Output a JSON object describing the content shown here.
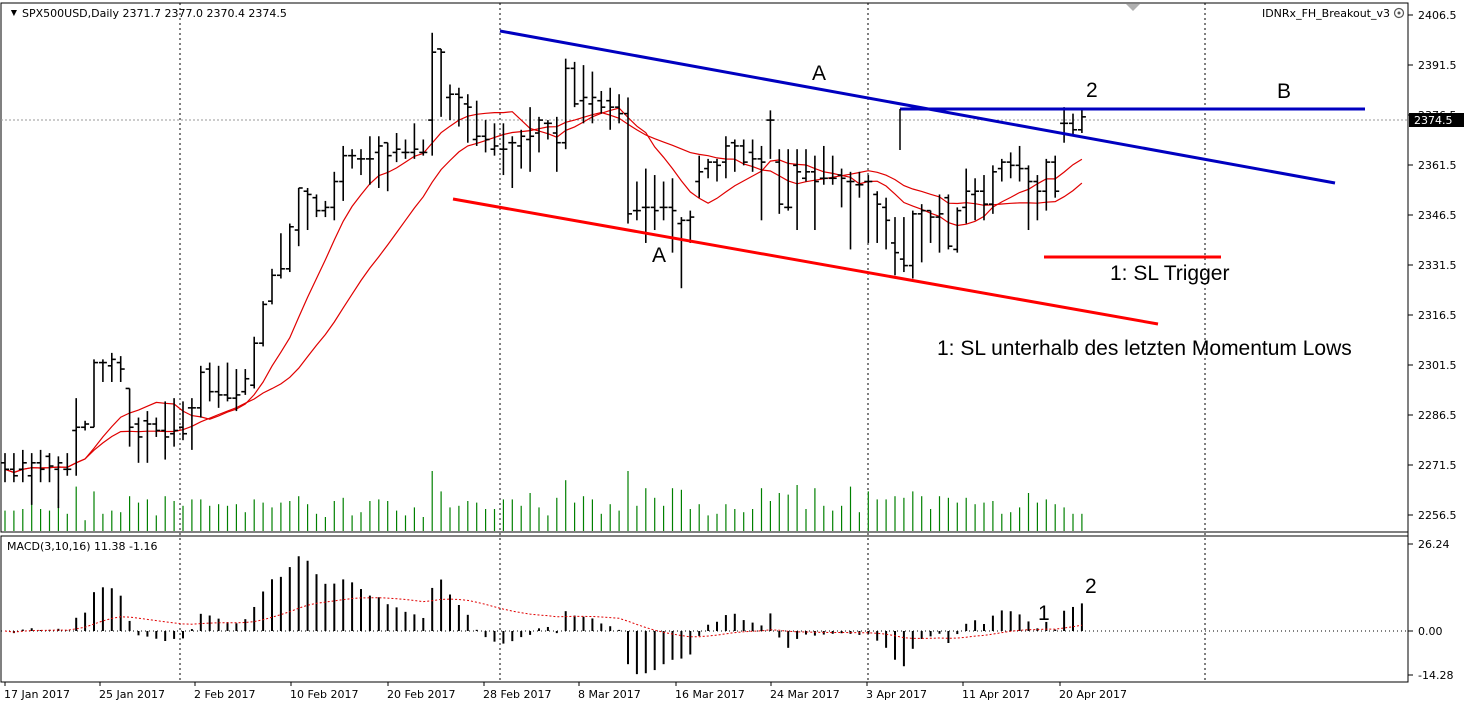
{
  "chart_header": {
    "symbol_line": "SPX500USD,Daily  2371.7 2377.0 2370.4 2374.5",
    "indicator_name": "IDNRx_FH_Breakout_v3",
    "macd_label": "MACD(3,10,16) 11.38 -1.16"
  },
  "colors": {
    "background": "#ffffff",
    "bars": "#000000",
    "volume": "#008000",
    "moving_average": "#e00000",
    "resistance_line": "#0000c0",
    "support_line": "#ff0000",
    "frame": "#000000",
    "grid": "#000000"
  },
  "price_axis": {
    "ticks": [
      "2406.5",
      "2391.5",
      "2376.5",
      "2361.5",
      "2346.5",
      "2331.5",
      "2316.5",
      "2301.5",
      "2286.5",
      "2271.5",
      "2256.5"
    ],
    "current_price": "2374.5"
  },
  "macd_axis": {
    "ticks": [
      "26.24",
      "0.00",
      "-14.28"
    ]
  },
  "date_axis": {
    "ticks": [
      "17 Jan 2017",
      "25 Jan 2017",
      "2 Feb 2017",
      "10 Feb 2017",
      "20 Feb 2017",
      "28 Feb 2017",
      "8 Mar 2017",
      "16 Mar 2017",
      "24 Mar 2017",
      "3 Apr 2017",
      "11 Apr 2017",
      "20 Apr 2017"
    ]
  },
  "annotations": {
    "upper_trendline_label": "A",
    "lower_trendline_label": "A",
    "horizontal_line_label": "B",
    "breakout_label": "2",
    "sl_trigger_label": "1: SL Trigger",
    "sl_note": "1: SL unterhalb des letzten Momentum Lows",
    "macd_label_1": "1",
    "macd_label_2": "2"
  },
  "window_controls": {
    "scroll_up": "▲"
  },
  "chart_data": {
    "type": "ohlc",
    "symbol": "SPX500USD",
    "timeframe": "Daily",
    "y_range": [
      2252,
      2410
    ],
    "bars": [
      {
        "o": 2268,
        "h": 2271,
        "l": 2262,
        "c": 2266
      },
      {
        "o": 2266,
        "h": 2271,
        "l": 2262,
        "c": 2264
      },
      {
        "o": 2266,
        "h": 2272,
        "l": 2262,
        "c": 2268
      },
      {
        "o": 2264,
        "h": 2271,
        "l": 2255,
        "c": 2268
      },
      {
        "o": 2268,
        "h": 2272,
        "l": 2262,
        "c": 2266
      },
      {
        "o": 2270,
        "h": 2271,
        "l": 2262,
        "c": 2267
      },
      {
        "o": 2266,
        "h": 2270,
        "l": 2254,
        "c": 2268
      },
      {
        "o": 2266,
        "h": 2271,
        "l": 2264,
        "c": 2266
      },
      {
        "o": 2278,
        "h": 2288,
        "l": 2264,
        "c": 2279
      },
      {
        "o": 2279,
        "h": 2281,
        "l": 2278,
        "c": 2280
      },
      {
        "o": 2279,
        "h": 2300,
        "l": 2279,
        "c": 2299
      },
      {
        "o": 2299,
        "h": 2300,
        "l": 2293,
        "c": 2299
      },
      {
        "o": 2298,
        "h": 2302,
        "l": 2293,
        "c": 2300
      },
      {
        "o": 2299,
        "h": 2301,
        "l": 2293,
        "c": 2297
      },
      {
        "o": 2291,
        "h": 2291,
        "l": 2273,
        "c": 2279
      },
      {
        "o": 2280,
        "h": 2282,
        "l": 2268,
        "c": 2276
      },
      {
        "o": 2281,
        "h": 2284,
        "l": 2268,
        "c": 2280
      },
      {
        "o": 2280,
        "h": 2282,
        "l": 2276,
        "c": 2278
      },
      {
        "o": 2278,
        "h": 2287,
        "l": 2269,
        "c": 2276
      },
      {
        "o": 2277,
        "h": 2288,
        "l": 2273,
        "c": 2278
      },
      {
        "o": 2279,
        "h": 2287,
        "l": 2275,
        "c": 2277
      },
      {
        "o": 2285,
        "h": 2288,
        "l": 2272,
        "c": 2285
      },
      {
        "o": 2285,
        "h": 2298,
        "l": 2282,
        "c": 2296
      },
      {
        "o": 2297,
        "h": 2299,
        "l": 2287,
        "c": 2290
      },
      {
        "o": 2290,
        "h": 2298,
        "l": 2285,
        "c": 2289
      },
      {
        "o": 2289,
        "h": 2299,
        "l": 2287,
        "c": 2288
      },
      {
        "o": 2288,
        "h": 2297,
        "l": 2284,
        "c": 2289
      },
      {
        "o": 2290,
        "h": 2297,
        "l": 2289,
        "c": 2294
      },
      {
        "o": 2292,
        "h": 2307,
        "l": 2291,
        "c": 2305
      },
      {
        "o": 2305,
        "h": 2318,
        "l": 2304,
        "c": 2317
      },
      {
        "o": 2318,
        "h": 2328,
        "l": 2317,
        "c": 2326
      },
      {
        "o": 2326,
        "h": 2339,
        "l": 2325,
        "c": 2328
      },
      {
        "o": 2328,
        "h": 2342,
        "l": 2327,
        "c": 2341
      },
      {
        "o": 2340,
        "h": 2353,
        "l": 2335,
        "c": 2353
      },
      {
        "o": 2352,
        "h": 2353,
        "l": 2340,
        "c": 2351
      },
      {
        "o": 2350,
        "h": 2351,
        "l": 2344,
        "c": 2346
      },
      {
        "o": 2346,
        "h": 2349,
        "l": 2344,
        "c": 2347
      },
      {
        "o": 2347,
        "h": 2358,
        "l": 2343,
        "c": 2355
      },
      {
        "o": 2355,
        "h": 2366,
        "l": 2349,
        "c": 2363
      },
      {
        "o": 2363,
        "h": 2365,
        "l": 2359,
        "c": 2363
      },
      {
        "o": 2362,
        "h": 2365,
        "l": 2357,
        "c": 2362
      },
      {
        "o": 2362,
        "h": 2369,
        "l": 2354,
        "c": 2362
      },
      {
        "o": 2364,
        "h": 2369,
        "l": 2353,
        "c": 2366
      },
      {
        "o": 2367,
        "h": 2367,
        "l": 2352,
        "c": 2363
      },
      {
        "o": 2364,
        "h": 2370,
        "l": 2361,
        "c": 2365
      },
      {
        "o": 2364,
        "h": 2368,
        "l": 2362,
        "c": 2364
      },
      {
        "o": 2364,
        "h": 2373,
        "l": 2362,
        "c": 2365
      },
      {
        "o": 2364,
        "h": 2368,
        "l": 2363,
        "c": 2364
      },
      {
        "o": 2374,
        "h": 2401,
        "l": 2363,
        "c": 2395
      },
      {
        "o": 2396,
        "h": 2396,
        "l": 2375,
        "c": 2395
      },
      {
        "o": 2381,
        "h": 2385,
        "l": 2374,
        "c": 2382
      },
      {
        "o": 2382,
        "h": 2384,
        "l": 2372,
        "c": 2381
      },
      {
        "o": 2379,
        "h": 2382,
        "l": 2367,
        "c": 2378
      },
      {
        "o": 2368,
        "h": 2380,
        "l": 2366,
        "c": 2369
      },
      {
        "o": 2369,
        "h": 2374,
        "l": 2364,
        "c": 2368
      },
      {
        "o": 2365,
        "h": 2373,
        "l": 2363,
        "c": 2366
      },
      {
        "o": 2365,
        "h": 2373,
        "l": 2357,
        "c": 2365
      },
      {
        "o": 2367,
        "h": 2369,
        "l": 2353,
        "c": 2367
      },
      {
        "o": 2366,
        "h": 2371,
        "l": 2359,
        "c": 2369
      },
      {
        "o": 2368,
        "h": 2378,
        "l": 2358,
        "c": 2369
      },
      {
        "o": 2370,
        "h": 2375,
        "l": 2364,
        "c": 2374
      },
      {
        "o": 2373,
        "h": 2374,
        "l": 2368,
        "c": 2373
      },
      {
        "o": 2370,
        "h": 2375,
        "l": 2358,
        "c": 2367
      },
      {
        "o": 2367,
        "h": 2393,
        "l": 2365,
        "c": 2390
      },
      {
        "o": 2390,
        "h": 2392,
        "l": 2378,
        "c": 2379
      },
      {
        "o": 2380,
        "h": 2391,
        "l": 2373,
        "c": 2381
      },
      {
        "o": 2379,
        "h": 2389,
        "l": 2373,
        "c": 2381
      },
      {
        "o": 2380,
        "h": 2383,
        "l": 2376,
        "c": 2378
      },
      {
        "o": 2380,
        "h": 2384,
        "l": 2371,
        "c": 2378
      },
      {
        "o": 2378,
        "h": 2382,
        "l": 2373,
        "c": 2376
      },
      {
        "o": 2376,
        "h": 2381,
        "l": 2342,
        "c": 2345
      },
      {
        "o": 2346,
        "h": 2355,
        "l": 2343,
        "c": 2346
      },
      {
        "o": 2347,
        "h": 2359,
        "l": 2336,
        "c": 2347
      },
      {
        "o": 2347,
        "h": 2357,
        "l": 2340,
        "c": 2346
      },
      {
        "o": 2347,
        "h": 2355,
        "l": 2343,
        "c": 2347
      },
      {
        "o": 2347,
        "h": 2356,
        "l": 2333,
        "c": 2346
      },
      {
        "o": 2342,
        "h": 2344,
        "l": 2322,
        "c": 2343
      },
      {
        "o": 2343,
        "h": 2346,
        "l": 2336,
        "c": 2344
      },
      {
        "o": 2355,
        "h": 2363,
        "l": 2350,
        "c": 2358
      },
      {
        "o": 2359,
        "h": 2362,
        "l": 2356,
        "c": 2361
      },
      {
        "o": 2361,
        "h": 2362,
        "l": 2355,
        "c": 2360
      },
      {
        "o": 2361,
        "h": 2369,
        "l": 2356,
        "c": 2366
      },
      {
        "o": 2367,
        "h": 2368,
        "l": 2358,
        "c": 2366
      },
      {
        "o": 2366,
        "h": 2368,
        "l": 2360,
        "c": 2361
      },
      {
        "o": 2364,
        "h": 2368,
        "l": 2358,
        "c": 2362
      },
      {
        "o": 2362,
        "h": 2366,
        "l": 2343,
        "c": 2361
      },
      {
        "o": 2374,
        "h": 2377,
        "l": 2362,
        "c": 2374
      },
      {
        "o": 2361,
        "h": 2365,
        "l": 2345,
        "c": 2348
      },
      {
        "o": 2347,
        "h": 2365,
        "l": 2346,
        "c": 2347
      },
      {
        "o": 2360,
        "h": 2365,
        "l": 2340,
        "c": 2358
      },
      {
        "o": 2356,
        "h": 2365,
        "l": 2355,
        "c": 2358
      },
      {
        "o": 2358,
        "h": 2363,
        "l": 2340,
        "c": 2355
      },
      {
        "o": 2356,
        "h": 2366,
        "l": 2354,
        "c": 2356
      },
      {
        "o": 2356,
        "h": 2363,
        "l": 2354,
        "c": 2356
      },
      {
        "o": 2357,
        "h": 2359,
        "l": 2347,
        "c": 2356
      },
      {
        "o": 2355,
        "h": 2358,
        "l": 2334,
        "c": 2355
      },
      {
        "o": 2354,
        "h": 2358,
        "l": 2350,
        "c": 2354
      },
      {
        "o": 2355,
        "h": 2357,
        "l": 2336,
        "c": 2355
      },
      {
        "o": 2351,
        "h": 2352,
        "l": 2336,
        "c": 2348
      },
      {
        "o": 2347,
        "h": 2350,
        "l": 2334,
        "c": 2343
      },
      {
        "o": 2336,
        "h": 2344,
        "l": 2326,
        "c": 2333
      },
      {
        "o": 2331,
        "h": 2344,
        "l": 2327,
        "c": 2329
      },
      {
        "o": 2329,
        "h": 2346,
        "l": 2325,
        "c": 2345
      },
      {
        "o": 2345,
        "h": 2348,
        "l": 2330,
        "c": 2346
      },
      {
        "o": 2346,
        "h": 2346,
        "l": 2336,
        "c": 2344
      },
      {
        "o": 2344,
        "h": 2351,
        "l": 2333,
        "c": 2345
      },
      {
        "o": 2350,
        "h": 2351,
        "l": 2334,
        "c": 2335
      },
      {
        "o": 2334,
        "h": 2347,
        "l": 2333,
        "c": 2346
      },
      {
        "o": 2347,
        "h": 2359,
        "l": 2342,
        "c": 2352
      },
      {
        "o": 2351,
        "h": 2356,
        "l": 2343,
        "c": 2352
      },
      {
        "o": 2352,
        "h": 2357,
        "l": 2343,
        "c": 2348
      },
      {
        "o": 2348,
        "h": 2360,
        "l": 2345,
        "c": 2358
      },
      {
        "o": 2359,
        "h": 2362,
        "l": 2355,
        "c": 2361
      },
      {
        "o": 2361,
        "h": 2364,
        "l": 2356,
        "c": 2360
      },
      {
        "o": 2360,
        "h": 2366,
        "l": 2355,
        "c": 2359
      },
      {
        "o": 2359,
        "h": 2360,
        "l": 2340,
        "c": 2355
      },
      {
        "o": 2355,
        "h": 2357,
        "l": 2343,
        "c": 2352
      },
      {
        "o": 2352,
        "h": 2362,
        "l": 2346,
        "c": 2361
      },
      {
        "o": 2361,
        "h": 2363,
        "l": 2350,
        "c": 2352
      },
      {
        "o": 2373,
        "h": 2378,
        "l": 2367,
        "c": 2373
      },
      {
        "o": 2373,
        "h": 2376,
        "l": 2369,
        "c": 2371
      },
      {
        "o": 2371,
        "h": 2377,
        "l": 2370,
        "c": 2375
      }
    ]
  }
}
